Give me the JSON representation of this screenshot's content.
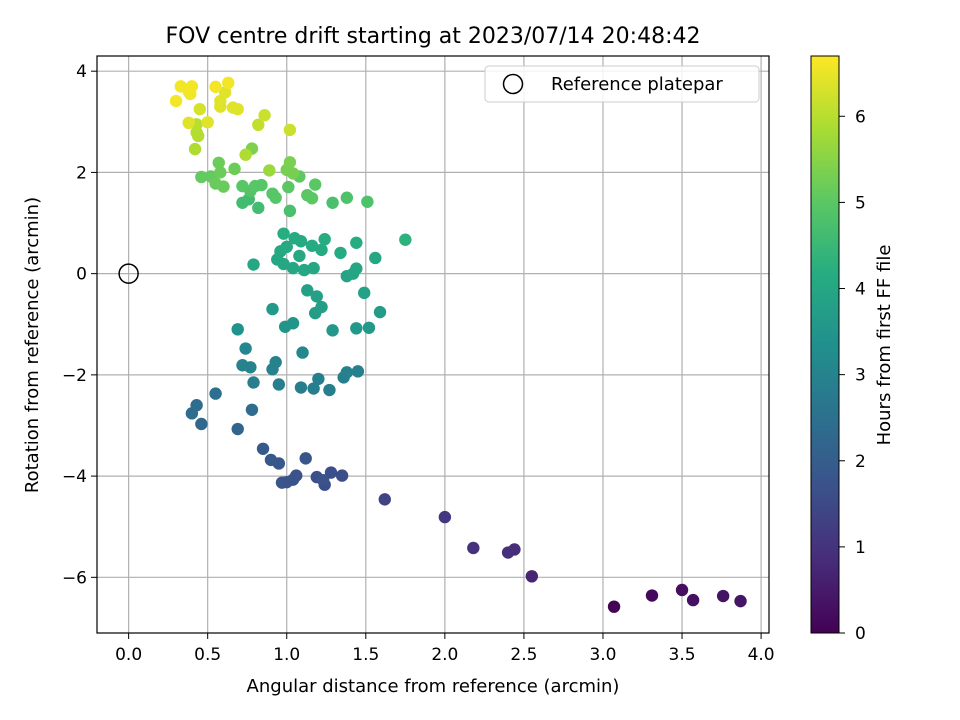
{
  "chart_data": {
    "type": "scatter",
    "title": "FOV centre drift starting at 2023/07/14 20:48:42",
    "xlabel": "Angular distance from reference (arcmin)",
    "ylabel": "Rotation from reference (arcmin)",
    "colorbar_label": "Hours from first FF file",
    "xlim": [
      -0.2,
      4.05
    ],
    "ylim": [
      -7.1,
      4.3
    ],
    "clim": [
      0,
      6.7
    ],
    "colormap": "viridis",
    "x_ticks": [
      "0.0",
      "0.5",
      "1.0",
      "1.5",
      "2.0",
      "2.5",
      "3.0",
      "3.5",
      "4.0"
    ],
    "y_ticks": [
      "-6",
      "-4",
      "-2",
      "0",
      "2",
      "4"
    ],
    "colorbar_ticks": [
      "0",
      "1",
      "2",
      "3",
      "4",
      "5",
      "6"
    ],
    "grid": true,
    "legend": {
      "position": "upper right",
      "entries": [
        "Reference platepar"
      ]
    },
    "reference": {
      "x": 0.0,
      "y": 0.0
    },
    "points": [
      [
        3.07,
        -6.58,
        0.05
      ],
      [
        3.31,
        -6.36,
        0.15
      ],
      [
        3.5,
        -6.25,
        0.25
      ],
      [
        3.57,
        -6.45,
        0.3
      ],
      [
        3.76,
        -6.37,
        0.35
      ],
      [
        3.87,
        -6.47,
        0.4
      ],
      [
        2.55,
        -5.98,
        0.7
      ],
      [
        2.44,
        -5.45,
        0.85
      ],
      [
        2.4,
        -5.51,
        0.9
      ],
      [
        2.18,
        -5.42,
        0.95
      ],
      [
        2.0,
        -4.81,
        1.1
      ],
      [
        1.62,
        -4.46,
        1.35
      ],
      [
        1.24,
        -4.17,
        1.6
      ],
      [
        1.28,
        -3.93,
        1.65
      ],
      [
        1.35,
        -3.99,
        1.6
      ],
      [
        1.19,
        -4.02,
        1.65
      ],
      [
        1.23,
        -4.08,
        1.7
      ],
      [
        1.06,
        -3.99,
        1.7
      ],
      [
        1.04,
        -4.07,
        1.75
      ],
      [
        0.97,
        -4.13,
        1.8
      ],
      [
        1.0,
        -4.12,
        1.75
      ],
      [
        1.12,
        -3.65,
        1.8
      ],
      [
        0.95,
        -3.75,
        1.85
      ],
      [
        0.9,
        -3.68,
        1.85
      ],
      [
        0.85,
        -3.46,
        1.9
      ],
      [
        0.69,
        -3.07,
        2.2
      ],
      [
        0.46,
        -2.97,
        2.3
      ],
      [
        0.4,
        -2.76,
        2.4
      ],
      [
        0.43,
        -2.6,
        2.4
      ],
      [
        0.55,
        -2.37,
        2.45
      ],
      [
        0.78,
        -2.69,
        2.4
      ],
      [
        0.95,
        -2.19,
        2.9
      ],
      [
        0.79,
        -2.15,
        2.9
      ],
      [
        1.09,
        -2.25,
        2.9
      ],
      [
        1.17,
        -2.27,
        2.9
      ],
      [
        1.27,
        -2.3,
        2.9
      ],
      [
        1.2,
        -2.08,
        2.9
      ],
      [
        1.36,
        -2.05,
        2.9
      ],
      [
        1.38,
        -1.95,
        2.95
      ],
      [
        1.45,
        -1.93,
        2.95
      ],
      [
        0.72,
        -1.81,
        3.0
      ],
      [
        0.77,
        -1.85,
        3.0
      ],
      [
        0.91,
        -1.89,
        3.0
      ],
      [
        0.93,
        -1.75,
        3.0
      ],
      [
        0.74,
        -1.48,
        3.1
      ],
      [
        1.1,
        -1.56,
        3.1
      ],
      [
        0.69,
        -1.1,
        3.4
      ],
      [
        0.91,
        -0.7,
        3.6
      ],
      [
        0.99,
        -1.05,
        3.5
      ],
      [
        1.04,
        -0.98,
        3.5
      ],
      [
        1.29,
        -1.12,
        3.55
      ],
      [
        1.44,
        -1.08,
        3.6
      ],
      [
        1.52,
        -1.07,
        3.6
      ],
      [
        1.59,
        -0.76,
        3.7
      ],
      [
        1.18,
        -0.78,
        3.7
      ],
      [
        1.22,
        -0.66,
        3.75
      ],
      [
        1.13,
        -0.33,
        3.8
      ],
      [
        1.19,
        -0.45,
        3.8
      ],
      [
        1.49,
        -0.38,
        3.85
      ],
      [
        1.38,
        -0.05,
        3.9
      ],
      [
        1.42,
        0.0,
        3.95
      ],
      [
        1.44,
        0.1,
        3.95
      ],
      [
        1.56,
        0.31,
        4.0
      ],
      [
        0.94,
        0.28,
        4.0
      ],
      [
        0.98,
        0.19,
        4.0
      ],
      [
        1.04,
        0.11,
        4.0
      ],
      [
        1.11,
        0.07,
        4.0
      ],
      [
        1.17,
        0.11,
        4.0
      ],
      [
        0.79,
        0.18,
        4.0
      ],
      [
        0.96,
        0.44,
        4.05
      ],
      [
        1.08,
        0.35,
        4.05
      ],
      [
        1.0,
        0.53,
        4.1
      ],
      [
        1.05,
        0.7,
        4.1
      ],
      [
        1.09,
        0.64,
        4.1
      ],
      [
        1.16,
        0.55,
        4.1
      ],
      [
        1.22,
        0.47,
        4.1
      ],
      [
        1.24,
        0.68,
        4.15
      ],
      [
        1.34,
        0.41,
        4.1
      ],
      [
        1.44,
        0.61,
        4.15
      ],
      [
        1.75,
        0.67,
        4.3
      ],
      [
        0.98,
        0.79,
        4.2
      ],
      [
        0.76,
        1.47,
        4.6
      ],
      [
        0.72,
        1.4,
        4.65
      ],
      [
        0.82,
        1.3,
        4.65
      ],
      [
        1.29,
        1.4,
        4.75
      ],
      [
        1.38,
        1.5,
        4.8
      ],
      [
        1.51,
        1.42,
        4.8
      ],
      [
        1.02,
        1.24,
        4.75
      ],
      [
        0.77,
        1.63,
        4.9
      ],
      [
        0.72,
        1.73,
        4.95
      ],
      [
        0.8,
        1.73,
        4.95
      ],
      [
        0.84,
        1.75,
        4.95
      ],
      [
        0.91,
        1.58,
        4.95
      ],
      [
        0.93,
        1.5,
        4.95
      ],
      [
        1.01,
        1.71,
        5.0
      ],
      [
        1.13,
        1.55,
        5.0
      ],
      [
        1.16,
        1.49,
        5.0
      ],
      [
        1.18,
        1.76,
        5.0
      ],
      [
        1.08,
        1.92,
        5.05
      ],
      [
        0.46,
        1.91,
        5.1
      ],
      [
        0.52,
        1.92,
        5.1
      ],
      [
        0.55,
        1.78,
        5.15
      ],
      [
        0.6,
        1.72,
        5.15
      ],
      [
        0.57,
        2.19,
        5.2
      ],
      [
        0.58,
        2.0,
        5.2
      ],
      [
        0.67,
        2.07,
        5.2
      ],
      [
        0.78,
        2.47,
        5.4
      ],
      [
        1.0,
        2.05,
        5.3
      ],
      [
        1.02,
        2.2,
        5.35
      ],
      [
        1.04,
        1.98,
        5.3
      ],
      [
        0.89,
        2.04,
        5.7
      ],
      [
        0.74,
        2.35,
        5.9
      ],
      [
        0.42,
        2.46,
        5.9
      ],
      [
        0.43,
        2.79,
        5.95
      ],
      [
        0.44,
        2.72,
        5.95
      ],
      [
        0.43,
        2.95,
        6.0
      ],
      [
        0.82,
        2.94,
        6.1
      ],
      [
        1.02,
        2.84,
        6.2
      ],
      [
        0.86,
        3.13,
        6.2
      ],
      [
        0.38,
        2.98,
        6.4
      ],
      [
        0.5,
        2.99,
        6.4
      ],
      [
        0.45,
        3.25,
        6.3
      ],
      [
        0.58,
        3.3,
        6.4
      ],
      [
        0.58,
        3.41,
        6.4
      ],
      [
        0.61,
        3.58,
        6.4
      ],
      [
        0.66,
        3.28,
        6.4
      ],
      [
        0.69,
        3.25,
        6.4
      ],
      [
        0.3,
        3.41,
        6.6
      ],
      [
        0.33,
        3.7,
        6.6
      ],
      [
        0.38,
        3.6,
        6.6
      ],
      [
        0.4,
        3.7,
        6.6
      ],
      [
        0.39,
        3.55,
        6.6
      ],
      [
        0.55,
        3.69,
        6.6
      ],
      [
        0.63,
        3.77,
        6.6
      ]
    ]
  }
}
